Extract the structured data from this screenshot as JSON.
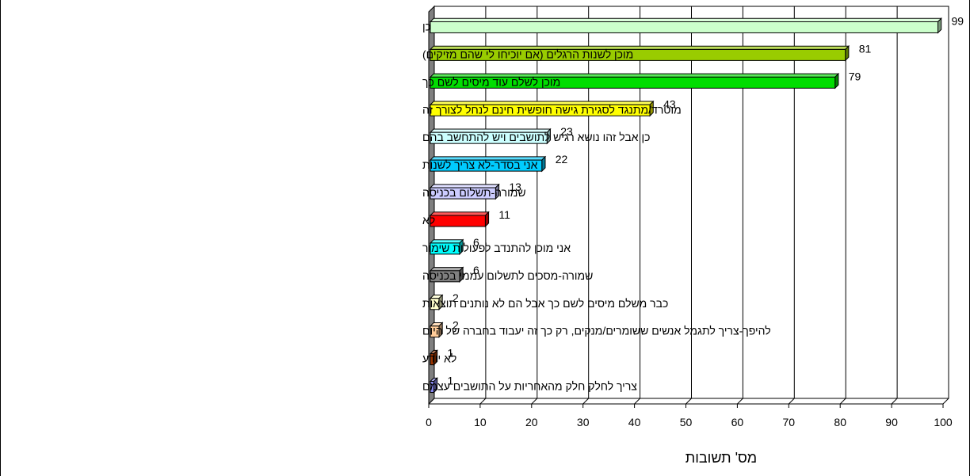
{
  "chart_data": {
    "type": "bar",
    "orientation": "horizontal",
    "title": "",
    "xlabel": "מס' תשובות",
    "ylabel": "",
    "xlim": [
      0,
      100
    ],
    "x_ticks": [
      0,
      10,
      20,
      30,
      40,
      50,
      60,
      70,
      80,
      90,
      100
    ],
    "grid": true,
    "legend": "none",
    "categories": [
      "כן",
      "מוכן לשנות הרגלים (אם יוכיחו לי שהם מזיקים)",
      "מוכן לשלם  עוד מיסים לשם כך",
      "מוטרד/מתנגד לסגירת גישה חופשית חינם לנחל לצורך זה",
      "כן אבל זהו נושא רגיש לתושבים  ויש להתחשב בהם",
      "אני בסדר-לא צריך לשנות",
      "שמורה-תשלום בכניסה",
      "לא",
      "אני מוכן להתנדב לפעולות שימור",
      "שמורה-מסכים לתשלום עממי בכניסה",
      "כבר משלם מיסים לשם כך אבל הם לא נותנים תוצאות",
      "להיפך-צריך לתגמל אנשים ששומרים/מנקים, רק כך זה יעבוד בחברה של היום",
      "לא יודע",
      "צריך לחלק חלק מהאחריות על התושבים עצמם"
    ],
    "values": [
      99,
      81,
      79,
      43,
      23,
      22,
      13,
      11,
      6,
      6,
      2,
      2,
      1,
      1
    ],
    "value_labels": [
      "99",
      "81",
      "79",
      "43",
      "23",
      "22",
      "13",
      "11",
      "6",
      "6",
      "2",
      "2",
      "1",
      "1"
    ],
    "colors": [
      "#ccffcc",
      "#99cc00",
      "#00dd00",
      "#ffff00",
      "#ccffff",
      "#00ccff",
      "#ccccff",
      "#ff0000",
      "#00ffff",
      "#808080",
      "#ffffcc",
      "#ffcc99",
      "#993300",
      "#8888ee"
    ]
  }
}
